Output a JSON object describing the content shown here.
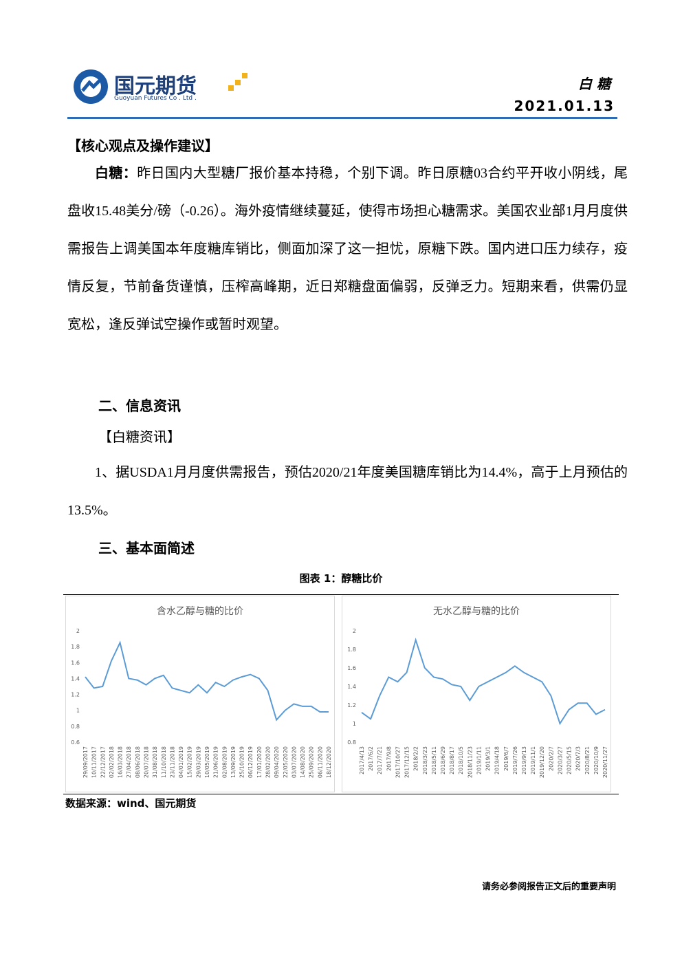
{
  "header": {
    "logo": "国元期货",
    "logo_en": "Guoyuan Futures Co . Ltd .",
    "product": "白 糖",
    "date": "2021.01.13"
  },
  "core": {
    "heading": "【核心观点及操作建议】",
    "lead": "白糖：",
    "text": "昨日国内大型糖厂报价基本持稳，个别下调。昨日原糖03合约平开收小阴线，尾盘收15.48美分/磅（-0.26）。海外疫情继续蔓延，使得市场担心糖需求。美国农业部1月月度供需报告上调美国本年度糖库销比，侧面加深了这一担忧，原糖下跌。国内进口压力续存，疫情反复，节前备货谨慎，压榨高峰期，近日郑糖盘面偏弱，反弹乏力。短期来看，供需仍显宽松，逢反弹试空操作或暂时观望。"
  },
  "info": {
    "heading": "二、信息资讯",
    "sub": "【白糖资讯】",
    "item": "1、据USDA1月月度供需报告，预估2020/21年度美国糖库销比为14.4%，高于上月预估的13.5%。"
  },
  "basic": {
    "heading": "三、基本面简述"
  },
  "figure": {
    "caption": "图表 1：醇糖比价",
    "source": "数据来源：wind、国元期货"
  },
  "footer": "请务必参阅报告正文后的重要声明",
  "chart_data": [
    {
      "type": "line",
      "title": "含水乙醇与糖的比价",
      "color": "#5b9bd5",
      "categories": [
        "29/09/2017",
        "10/11/2017",
        "22/12/2017",
        "02/02/2018",
        "16/03/2018",
        "27/04/2018",
        "08/06/2018",
        "20/07/2018",
        "31/08/2018",
        "11/10/2018",
        "23/11/2018",
        "04/01/2019",
        "15/02/2019",
        "29/03/2019",
        "10/05/2019",
        "21/06/2019",
        "02/08/2019",
        "13/09/2019",
        "25/10/2019",
        "06/12/2019",
        "17/01/2020",
        "28/02/2020",
        "09/04/2020",
        "22/05/2020",
        "03/07/2020",
        "14/08/2020",
        "25/09/2020",
        "06/11/2020",
        "18/12/2020"
      ],
      "values": [
        1.42,
        1.28,
        1.3,
        1.62,
        1.85,
        1.4,
        1.38,
        1.32,
        1.4,
        1.44,
        1.28,
        1.25,
        1.22,
        1.32,
        1.22,
        1.35,
        1.3,
        1.38,
        1.42,
        1.45,
        1.4,
        1.25,
        0.88,
        1.0,
        1.08,
        1.05,
        1.05,
        0.98,
        0.98
      ],
      "ylim": [
        0.6,
        2
      ],
      "yticks": [
        0.6,
        0.8,
        1,
        1.2,
        1.4,
        1.6,
        1.8,
        2
      ]
    },
    {
      "type": "line",
      "title": "无水乙醇与糖的比价",
      "color": "#5b9bd5",
      "categories": [
        "2017/4/13",
        "2017/6/2",
        "2017/7/21",
        "2017/9/8",
        "2017/10/27",
        "2017/12/15",
        "2018/2/2",
        "2018/3/23",
        "2018/5/11",
        "2018/6/29",
        "2018/8/17",
        "2018/10/5",
        "2018/11/23",
        "2019/1/11",
        "2019/3/1",
        "2019/4/18",
        "2019/6/7",
        "2019/7/26",
        "2019/9/13",
        "2019/11/1",
        "2019/12/20",
        "2020/2/7",
        "2020/3/27",
        "2020/5/15",
        "2020/7/3",
        "2020/8/21",
        "2020/10/9",
        "2020/11/27"
      ],
      "values": [
        1.12,
        1.05,
        1.3,
        1.5,
        1.45,
        1.55,
        1.9,
        1.6,
        1.5,
        1.48,
        1.42,
        1.4,
        1.25,
        1.4,
        1.45,
        1.5,
        1.55,
        1.62,
        1.55,
        1.5,
        1.45,
        1.3,
        1.0,
        1.15,
        1.22,
        1.22,
        1.1,
        1.15
      ],
      "ylim": [
        0.8,
        2
      ],
      "yticks": [
        0.8,
        1,
        1.2,
        1.4,
        1.6,
        1.8,
        2
      ]
    }
  ]
}
